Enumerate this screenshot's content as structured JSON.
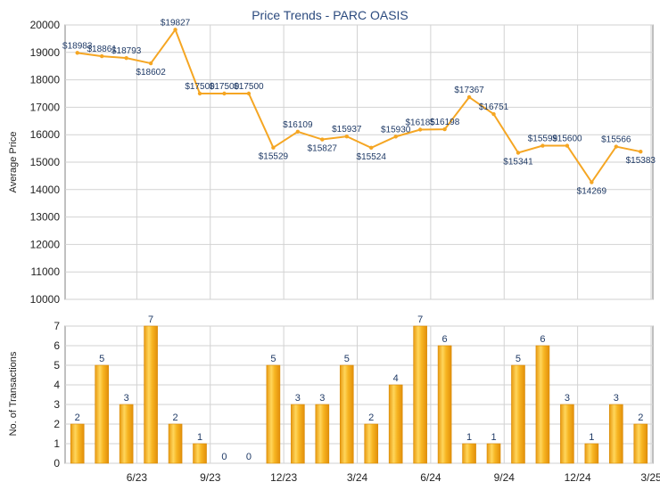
{
  "chart_data": [
    {
      "type": "line",
      "title": "Price Trends - PARC OASIS",
      "ylabel": "Average Price",
      "ylim": [
        10000,
        20000
      ],
      "yticks": [
        10000,
        11000,
        12000,
        13000,
        14000,
        15000,
        16000,
        17000,
        18000,
        19000,
        20000
      ],
      "x_tick_labels": [
        "6/23",
        "9/23",
        "12/23",
        "3/24",
        "6/24",
        "9/24",
        "12/24",
        "3/25"
      ],
      "grid": true,
      "color": "#f5a623",
      "series": [
        {
          "values": [
            18983,
            18861,
            18793,
            18602,
            19827,
            17500,
            17500,
            17500,
            15529,
            16109,
            15827,
            15937,
            15524,
            15930,
            16185,
            16198,
            17367,
            16751,
            15341,
            15599,
            15600,
            14269,
            15566,
            15383
          ],
          "labels": [
            "$18983",
            "$18861",
            "$18793",
            "$18602",
            "$19827",
            "$17500",
            "$17500",
            "$17500",
            "$15529",
            "$16109",
            "$15827",
            "$15937",
            "$15524",
            "$15930",
            "$16185",
            "$16198",
            "$17367",
            "$16751",
            "$15341",
            "$15599",
            "$15600",
            "$14269",
            "$15566",
            "$15383"
          ]
        }
      ]
    },
    {
      "type": "bar",
      "ylabel": "No. of Transactions",
      "ylim": [
        0,
        7
      ],
      "yticks": [
        0,
        1,
        2,
        3,
        4,
        5,
        6,
        7
      ],
      "x_tick_labels": [
        "6/23",
        "9/23",
        "12/23",
        "3/24",
        "6/24",
        "9/24",
        "12/24",
        "3/25"
      ],
      "grid": true,
      "color": "#f5b21e",
      "values": [
        2,
        5,
        3,
        7,
        2,
        1,
        0,
        0,
        5,
        3,
        3,
        5,
        2,
        4,
        7,
        6,
        1,
        1,
        5,
        6,
        3,
        1,
        3,
        2
      ]
    }
  ]
}
